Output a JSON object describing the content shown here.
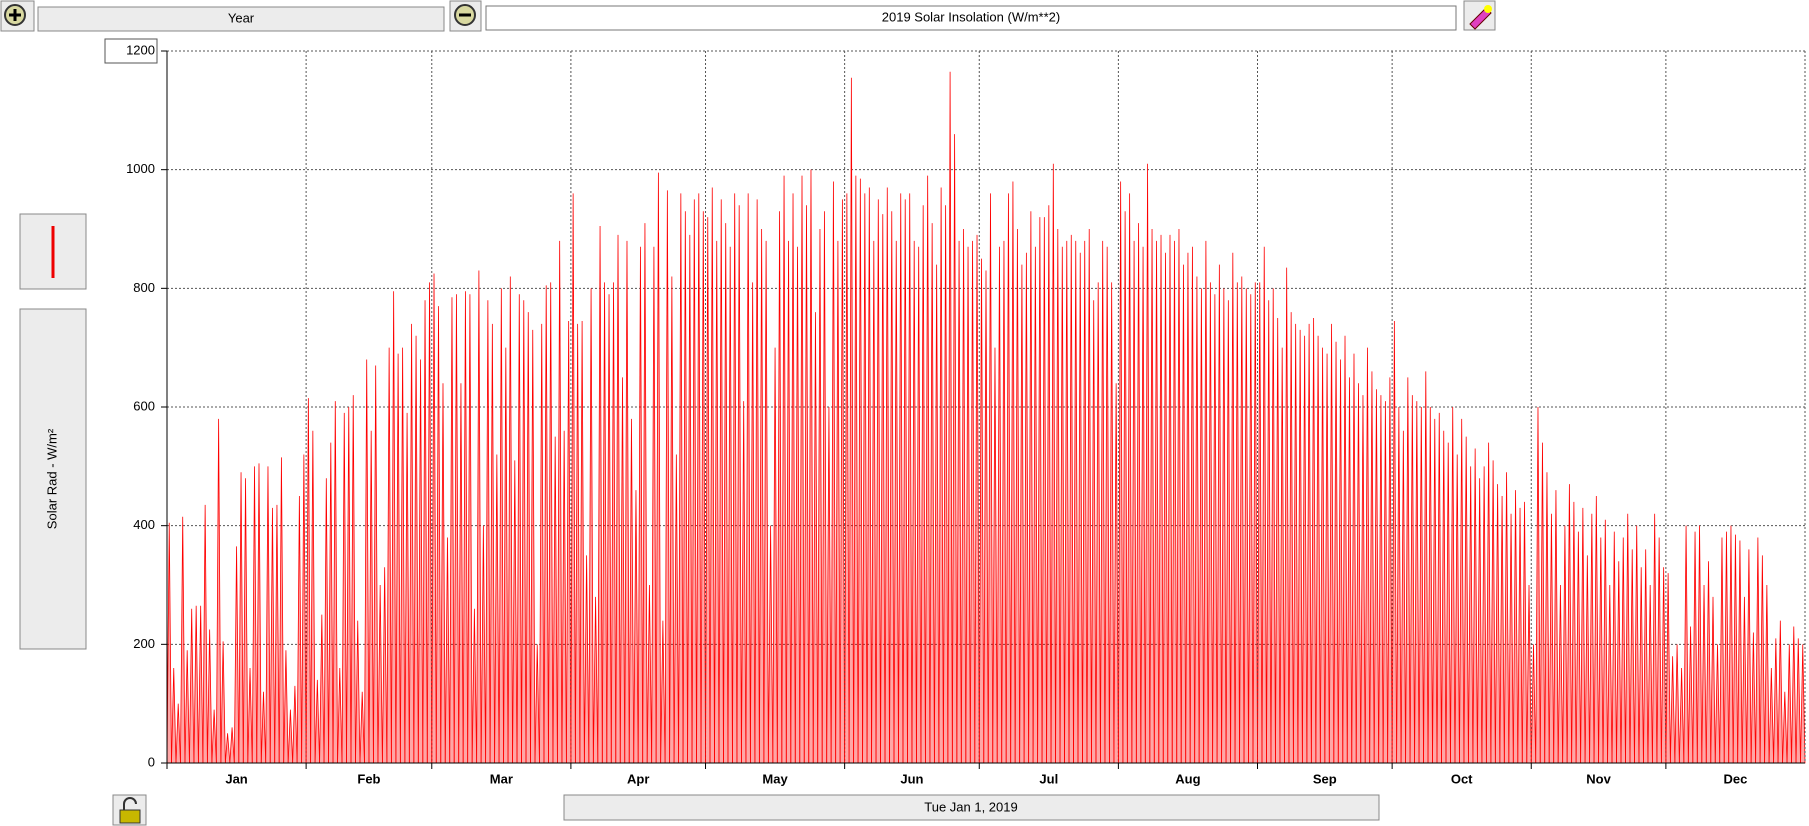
{
  "toolbar": {
    "period": "Year"
  },
  "footer": {
    "date": "Tue Jan 1, 2019"
  },
  "chart_data": {
    "type": "spike",
    "title": "2019 Solar Insolation (W/m**2)",
    "y_label": "Solar Rad - W/m²",
    "color": "#ff0000",
    "grid": true,
    "ylim": [
      0,
      1200
    ],
    "yticks": [
      0,
      200,
      400,
      600,
      800,
      1000,
      1200
    ],
    "categories": [
      "Jan",
      "Feb",
      "Mar",
      "Apr",
      "May",
      "Jun",
      "Jul",
      "Aug",
      "Sep",
      "Oct",
      "Nov",
      "Dec"
    ],
    "values": [
      [
        405,
        160,
        100,
        415,
        190,
        260,
        265,
        265,
        435,
        225,
        90,
        580,
        205,
        50,
        60,
        365,
        490,
        480,
        160,
        500,
        505,
        120,
        500,
        430,
        435,
        515,
        190,
        90,
        130,
        450,
        520
      ],
      [
        615,
        560,
        140,
        250,
        480,
        540,
        610,
        160,
        590,
        600,
        620,
        240,
        120,
        680,
        560,
        670,
        300,
        330,
        700,
        795,
        690,
        700,
        590,
        740,
        720,
        680,
        780,
        810
      ],
      [
        825,
        770,
        640,
        380,
        785,
        790,
        640,
        795,
        790,
        260,
        830,
        400,
        780,
        740,
        520,
        800,
        700,
        820,
        510,
        790,
        780,
        760,
        730,
        200,
        740,
        805,
        810,
        550,
        880,
        560,
        745
      ],
      [
        960,
        740,
        745,
        350,
        800,
        280,
        905,
        810,
        790,
        810,
        890,
        650,
        880,
        580,
        460,
        870,
        910,
        300,
        870,
        995,
        240,
        965,
        820,
        520,
        960,
        930,
        890,
        950,
        960,
        930
      ],
      [
        920,
        970,
        880,
        950,
        910,
        870,
        960,
        940,
        610,
        960,
        810,
        950,
        900,
        880,
        400,
        700,
        930,
        990,
        880,
        960,
        870,
        990,
        940,
        1000,
        760,
        900,
        930,
        600,
        980,
        880,
        950
      ],
      [
        960,
        1155,
        990,
        985,
        960,
        970,
        880,
        950,
        925,
        970,
        930,
        880,
        960,
        950,
        960,
        880,
        870,
        940,
        990,
        910,
        840,
        970,
        940,
        1165,
        1060,
        880,
        900,
        870,
        880,
        890
      ],
      [
        850,
        830,
        960,
        700,
        870,
        880,
        960,
        980,
        900,
        840,
        860,
        930,
        870,
        920,
        920,
        940,
        1010,
        900,
        870,
        880,
        890,
        880,
        860,
        880,
        900,
        780,
        810,
        880,
        870,
        810,
        640
      ],
      [
        980,
        930,
        960,
        880,
        910,
        870,
        1010,
        900,
        880,
        890,
        860,
        890,
        880,
        900,
        840,
        860,
        870,
        820,
        800,
        880,
        810,
        790,
        840,
        800,
        780,
        860,
        810,
        820,
        800,
        790,
        810
      ],
      [
        810,
        870,
        780,
        800,
        750,
        700,
        835,
        760,
        740,
        730,
        720,
        740,
        750,
        720,
        700,
        690,
        740,
        710,
        680,
        720,
        650,
        690,
        640,
        620,
        700,
        660,
        630,
        620,
        610,
        650
      ],
      [
        745,
        600,
        560,
        650,
        620,
        610,
        600,
        660,
        600,
        580,
        590,
        560,
        540,
        600,
        520,
        580,
        550,
        500,
        530,
        480,
        500,
        540,
        510,
        470,
        450,
        490,
        420,
        460,
        430,
        440,
        300
      ],
      [
        200,
        600,
        540,
        490,
        420,
        460,
        300,
        400,
        470,
        440,
        390,
        430,
        350,
        420,
        450,
        380,
        410,
        300,
        390,
        340,
        380,
        420,
        360,
        400,
        330,
        360,
        300,
        420,
        380,
        330
      ],
      [
        320,
        180,
        200,
        160,
        400,
        230,
        390,
        400,
        300,
        340,
        280,
        200,
        380,
        390,
        400,
        385,
        375,
        280,
        360,
        220,
        380,
        350,
        300,
        160,
        210,
        240,
        120,
        200,
        230,
        210,
        200
      ]
    ]
  }
}
